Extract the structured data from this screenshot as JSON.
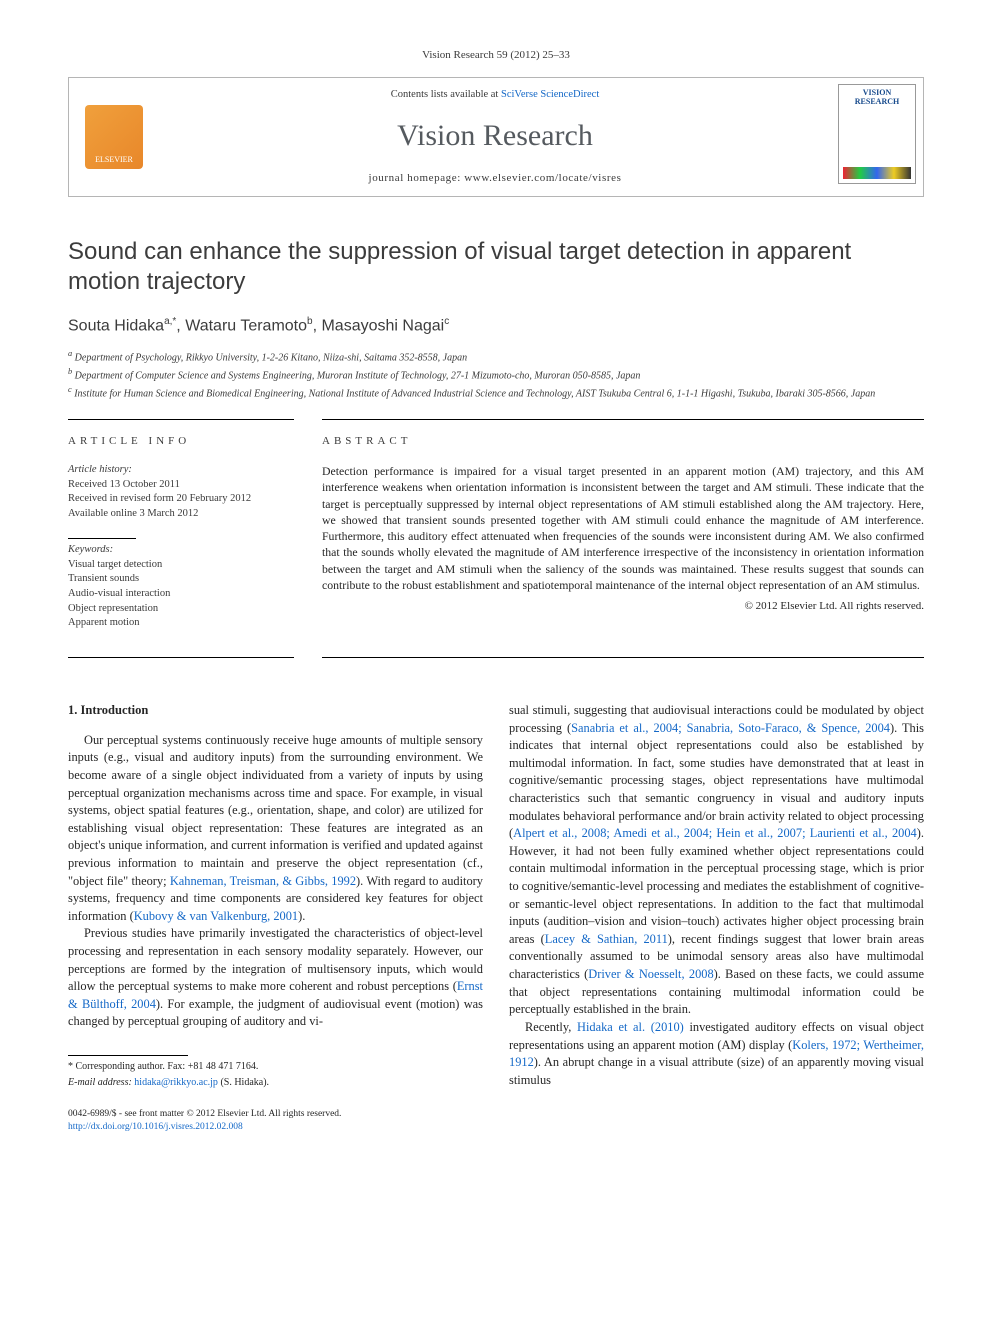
{
  "header_ref": "Vision Research 59 (2012) 25–33",
  "journal_box": {
    "contents_prefix": "Contents lists available at ",
    "contents_link": "SciVerse ScienceDirect",
    "journal_title": "Vision Research",
    "homepage_prefix": "journal homepage: ",
    "homepage_url": "www.elsevier.com/locate/visres",
    "publisher_logo_label": "ELSEVIER",
    "cover_label": "VISION RESEARCH"
  },
  "article": {
    "title": "Sound can enhance the suppression of visual target detection in apparent motion trajectory",
    "authors_html": "Souta Hidaka",
    "author1": "Souta Hidaka",
    "author1_sup": "a,*",
    "author2": "Wataru Teramoto",
    "author2_sup": "b",
    "author3": "Masayoshi Nagai",
    "author3_sup": "c",
    "affiliations": {
      "a": "Department of Psychology, Rikkyo University, 1-2-26 Kitano, Niiza-shi, Saitama 352-8558, Japan",
      "b": "Department of Computer Science and Systems Engineering, Muroran Institute of Technology, 27-1 Mizumoto-cho, Muroran 050-8585, Japan",
      "c": "Institute for Human Science and Biomedical Engineering, National Institute of Advanced Industrial Science and Technology, AIST Tsukuba Central 6, 1-1-1 Higashi, Tsukuba, Ibaraki 305-8566, Japan"
    }
  },
  "article_info": {
    "head": "ARTICLE INFO",
    "history_label": "Article history:",
    "received": "Received 13 October 2011",
    "revised": "Received in revised form 20 February 2012",
    "online": "Available online 3 March 2012",
    "keywords_label": "Keywords:",
    "kw1": "Visual target detection",
    "kw2": "Transient sounds",
    "kw3": "Audio-visual interaction",
    "kw4": "Object representation",
    "kw5": "Apparent motion"
  },
  "abstract": {
    "head": "ABSTRACT",
    "text": "Detection performance is impaired for a visual target presented in an apparent motion (AM) trajectory, and this AM interference weakens when orientation information is inconsistent between the target and AM stimuli. These indicate that the target is perceptually suppressed by internal object representations of AM stimuli established along the AM trajectory. Here, we showed that transient sounds presented together with AM stimuli could enhance the magnitude of AM interference. Furthermore, this auditory effect attenuated when frequencies of the sounds were inconsistent during AM. We also confirmed that the sounds wholly elevated the magnitude of AM interference irrespective of the inconsistency in orientation information between the target and AM stimuli when the saliency of the sounds was maintained. These results suggest that sounds can contribute to the robust establishment and spatiotemporal maintenance of the internal object representation of an AM stimulus.",
    "copyright": "© 2012 Elsevier Ltd. All rights reserved."
  },
  "body": {
    "sec1_head": "1. Introduction",
    "p1": "Our perceptual systems continuously receive huge amounts of multiple sensory inputs (e.g., visual and auditory inputs) from the surrounding environment. We become aware of a single object individuated from a variety of inputs by using perceptual organization mechanisms across time and space. For example, in visual systems, object spatial features (e.g., orientation, shape, and color) are utilized for establishing visual object representation: These features are integrated as an object's unique information, and current information is verified and updated against previous information to maintain and preserve the object representation (cf., \"object file\" theory; ",
    "ref1": "Kahneman, Treisman, & Gibbs, 1992",
    "p1b": "). With regard to auditory systems, frequency and time components are considered key features for object information (",
    "ref2": "Kubovy & van Valkenburg, 2001",
    "p1c": ").",
    "p2": "Previous studies have primarily investigated the characteristics of object-level processing and representation in each sensory modality separately. However, our perceptions are formed by the integration of multisensory inputs, which would allow the perceptual systems to make more coherent and robust perceptions (",
    "ref3": "Ernst & Bülthoff, 2004",
    "p2b": "). For example, the judgment of audiovisual event (motion) was changed by perceptual grouping of auditory and vi-",
    "p3": "sual stimuli, suggesting that audiovisual interactions could be modulated by object processing (",
    "ref4": "Sanabria et al., 2004; Sanabria, Soto-Faraco, & Spence, 2004",
    "p3b": "). This indicates that internal object representations could also be established by multimodal information. In fact, some studies have demonstrated that at least in cognitive/semantic processing stages, object representations have multimodal characteristics such that semantic congruency in visual and auditory inputs modulates behavioral performance and/or brain activity related to object processing (",
    "ref5": "Alpert et al., 2008; Amedi et al., 2004; Hein et al., 2007; Laurienti et al., 2004",
    "p3c": "). However, it had not been fully examined whether object representations could contain multimodal information in the perceptual processing stage, which is prior to cognitive/semantic-level processing and mediates the establishment of cognitive- or semantic-level object representations. In addition to the fact that multimodal inputs (audition–vision and vision–touch) activates higher object processing brain areas (",
    "ref6": "Lacey & Sathian, 2011",
    "p3d": "), recent findings suggest that lower brain areas conventionally assumed to be unimodal sensory areas also have multimodal characteristics (",
    "ref7": "Driver & Noesselt, 2008",
    "p3e": "). Based on these facts, we could assume that object representations containing multimodal information could be perceptually established in the brain.",
    "p4": "Recently, ",
    "ref8": "Hidaka et al. (2010)",
    "p4b": " investigated auditory effects on visual object representations using an apparent motion (AM) display (",
    "ref9": "Kolers, 1972; Wertheimer, 1912",
    "p4c": "). An abrupt change in a visual attribute (size) of an apparently moving visual stimulus"
  },
  "footnotes": {
    "corr": "* Corresponding author. Fax: +81 48 471 7164.",
    "email_label": "E-mail address: ",
    "email": "hidaka@rikkyo.ac.jp",
    "email_tail": " (S. Hidaka)."
  },
  "footer": {
    "line1": "0042-6989/$ - see front matter © 2012 Elsevier Ltd. All rights reserved.",
    "doi": "http://dx.doi.org/10.1016/j.visres.2012.02.008"
  }
}
